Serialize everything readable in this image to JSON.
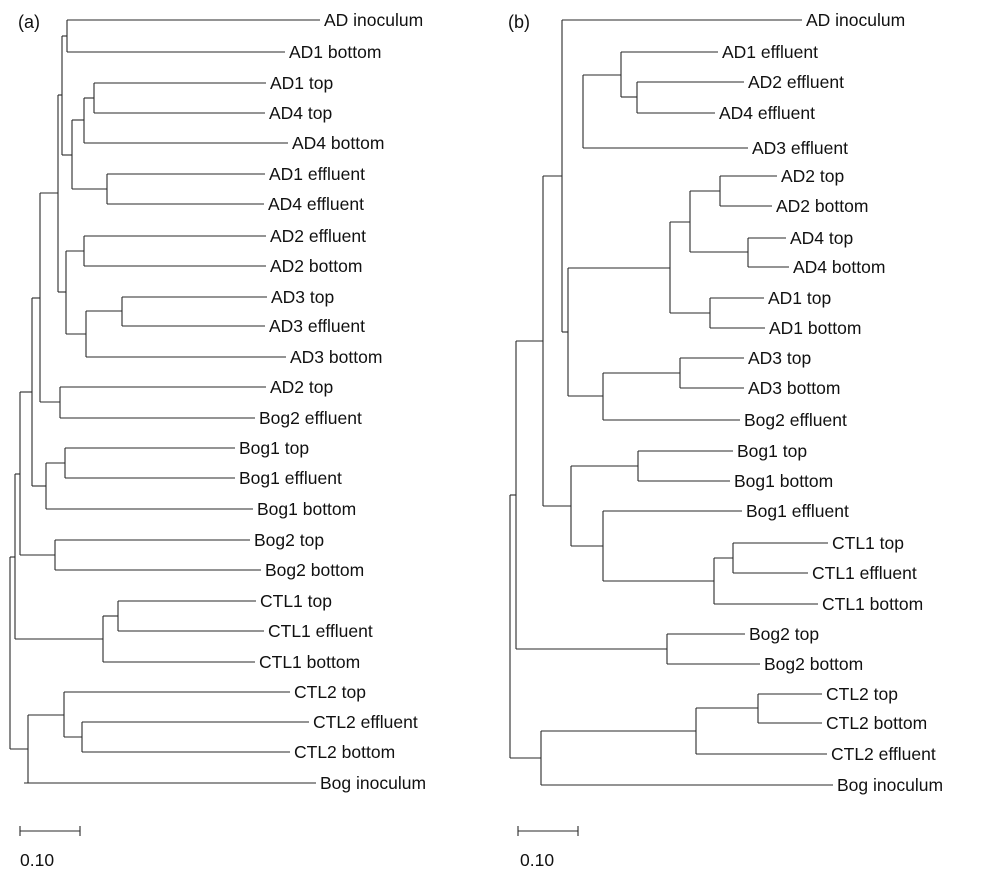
{
  "panels": [
    {
      "label": "(a)",
      "scale_bar_label": "0.10",
      "leaves": [
        "AD inoculum",
        "AD1 bottom",
        "AD1 top",
        "AD4 top",
        "AD4 bottom",
        "AD1 effluent",
        "AD4 effluent",
        "AD2 effluent",
        "AD2 bottom",
        "AD3 top",
        "AD3 effluent",
        "AD3 bottom",
        "AD2 top",
        "Bog2 effluent",
        "Bog1 top",
        "Bog1 effluent",
        "Bog1 bottom",
        "Bog2 top",
        "Bog2 bottom",
        "CTL1 top",
        "CTL1 effluent",
        "CTL1 bottom",
        "CTL2 top",
        "CTL2 effluent",
        "CTL2 bottom",
        "Bog inoculum"
      ]
    },
    {
      "label": "(b)",
      "scale_bar_label": "0.10",
      "leaves": [
        "AD inoculum",
        "AD1 effluent",
        "AD2 effluent",
        "AD4 effluent",
        "AD3 effluent",
        "AD2 top",
        "AD2 bottom",
        "AD4 top",
        "AD4 bottom",
        "AD1 top",
        "AD1 bottom",
        "AD3 top",
        "AD3 bottom",
        "Bog2 effluent",
        "Bog1 top",
        "Bog1 bottom",
        "Bog1 effluent",
        "CTL1 top",
        "CTL1 effluent",
        "CTL1 bottom",
        "Bog2 top",
        "Bog2 bottom",
        "CTL2 top",
        "CTL2 bottom",
        "CTL2 effluent",
        "Bog inoculum"
      ]
    }
  ]
}
